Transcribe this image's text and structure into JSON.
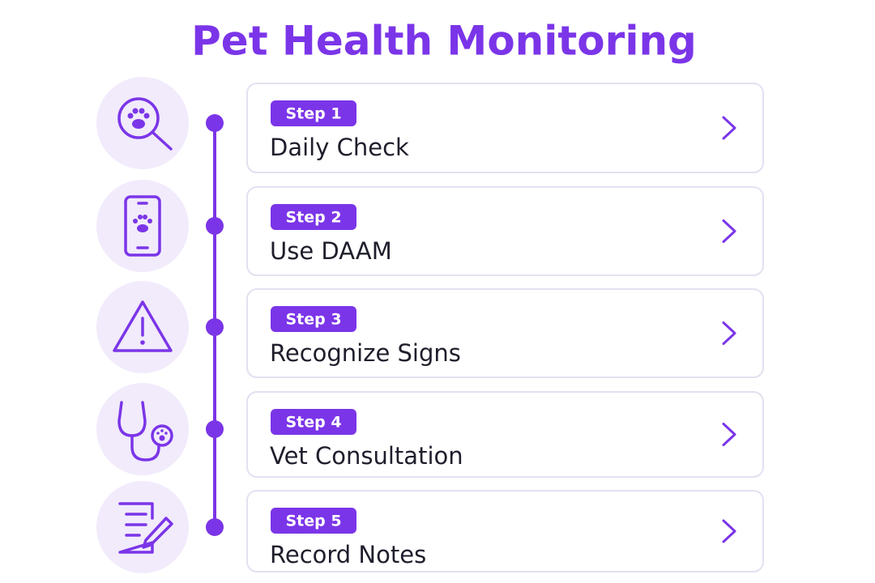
{
  "header": {
    "title": "Pet Health Monitoring"
  },
  "steps": [
    {
      "badge": "Step 1",
      "label": "Daily Check"
    },
    {
      "badge": "Step 2",
      "label": "Use DAAM"
    },
    {
      "badge": "Step 3",
      "label": "Recognize Signs"
    },
    {
      "badge": "Step 4",
      "label": "Vet Consultation"
    },
    {
      "badge": "Step 5",
      "label": "Record Notes"
    }
  ]
}
